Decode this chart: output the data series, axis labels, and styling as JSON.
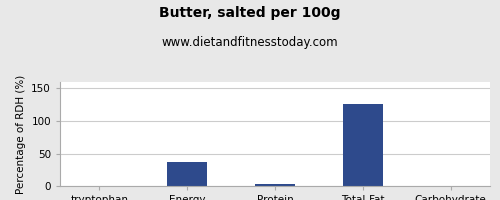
{
  "title": "Butter, salted per 100g",
  "subtitle": "www.dietandfitnesstoday.com",
  "ylabel": "Percentage of RDH (%)",
  "categories": [
    "tryptophan",
    "Energy",
    "Protein",
    "Total-Fat",
    "Carbohydrate"
  ],
  "values": [
    0.4,
    37,
    3,
    126,
    0.2
  ],
  "bar_color": "#2e4a8c",
  "ylim": [
    0,
    160
  ],
  "yticks": [
    0,
    50,
    100,
    150
  ],
  "title_fontsize": 10,
  "subtitle_fontsize": 8.5,
  "ylabel_fontsize": 7.5,
  "tick_fontsize": 7.5,
  "background_color": "#e8e8e8",
  "plot_bg_color": "#ffffff",
  "grid_color": "#cccccc",
  "border_color": "#aaaaaa"
}
